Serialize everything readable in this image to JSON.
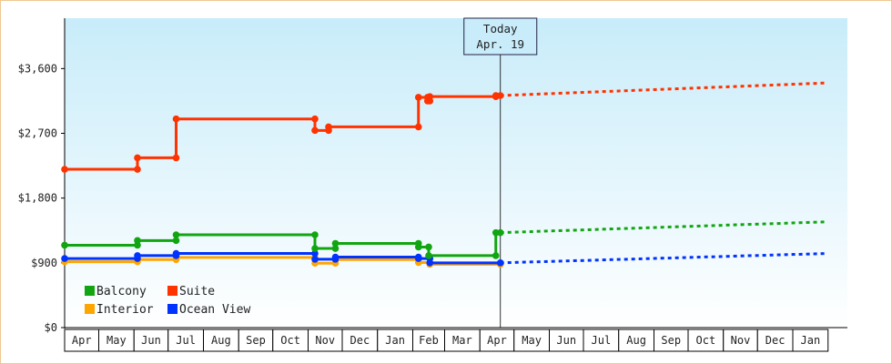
{
  "chart_data": {
    "type": "line",
    "title": "",
    "xlabel": "",
    "ylabel": "",
    "ylim": [
      0,
      4300
    ],
    "y_ticks": [
      0,
      900,
      1800,
      2700,
      3600
    ],
    "y_tick_labels": [
      "$0",
      "$900",
      "$1,800",
      "$2,700",
      "$3,600"
    ],
    "x_tick_labels": [
      "Apr",
      "May",
      "Jun",
      "Jul",
      "Aug",
      "Sep",
      "Oct",
      "Nov",
      "Dec",
      "Jan",
      "Feb",
      "Mar",
      "Apr",
      "May",
      "Jun",
      "Jul",
      "Aug",
      "Sep",
      "Oct",
      "Nov",
      "Dec",
      "Jan"
    ],
    "x_start": "2012-04-01",
    "today_marker": {
      "title": "Today",
      "date_label": "Apr. 19",
      "x": "2013-04-19"
    },
    "grid": false,
    "legend_position": "bottom-left",
    "series": [
      {
        "name": "Balcony",
        "color": "#11a611",
        "points": [
          [
            "2012-04-01",
            1145
          ],
          [
            "2012-06-04",
            1145
          ],
          [
            "2012-06-04",
            1210
          ],
          [
            "2012-07-08",
            1210
          ],
          [
            "2012-07-08",
            1290
          ],
          [
            "2012-11-07",
            1290
          ],
          [
            "2012-11-07",
            1100
          ],
          [
            "2012-11-25",
            1100
          ],
          [
            "2012-11-25",
            1170
          ],
          [
            "2013-02-06",
            1170
          ],
          [
            "2013-02-06",
            1120
          ],
          [
            "2013-02-15",
            1120
          ],
          [
            "2013-02-15",
            1000
          ],
          [
            "2013-04-15",
            1000
          ],
          [
            "2013-04-15",
            1320
          ],
          [
            "2013-04-19",
            1320
          ]
        ],
        "forecast": [
          [
            "2013-04-19",
            1320
          ],
          [
            "2014-01-31",
            1470
          ]
        ]
      },
      {
        "name": "Suite",
        "color": "#ff3300",
        "points": [
          [
            "2012-04-01",
            2200
          ],
          [
            "2012-06-04",
            2200
          ],
          [
            "2012-06-04",
            2360
          ],
          [
            "2012-07-08",
            2360
          ],
          [
            "2012-07-08",
            2900
          ],
          [
            "2012-11-07",
            2900
          ],
          [
            "2012-11-07",
            2740
          ],
          [
            "2012-11-19",
            2740
          ],
          [
            "2012-11-19",
            2790
          ],
          [
            "2013-02-06",
            2790
          ],
          [
            "2013-02-06",
            3200
          ],
          [
            "2013-02-14",
            3200
          ],
          [
            "2013-02-14",
            3150
          ],
          [
            "2013-02-16",
            3150
          ],
          [
            "2013-02-16",
            3210
          ],
          [
            "2013-04-15",
            3210
          ],
          [
            "2013-04-15",
            3225
          ],
          [
            "2013-04-19",
            3225
          ]
        ],
        "forecast": [
          [
            "2013-04-19",
            3225
          ],
          [
            "2014-01-31",
            3400
          ]
        ]
      },
      {
        "name": "Interior",
        "color": "#ffa500",
        "points": [
          [
            "2012-04-01",
            915
          ],
          [
            "2012-06-04",
            915
          ],
          [
            "2012-06-04",
            945
          ],
          [
            "2012-07-08",
            945
          ],
          [
            "2012-07-08",
            975
          ],
          [
            "2012-11-07",
            975
          ],
          [
            "2012-11-07",
            895
          ],
          [
            "2012-11-25",
            895
          ],
          [
            "2012-11-25",
            945
          ],
          [
            "2013-02-06",
            945
          ],
          [
            "2013-02-06",
            905
          ],
          [
            "2013-02-16",
            905
          ],
          [
            "2013-02-16",
            880
          ],
          [
            "2013-04-19",
            880
          ]
        ],
        "forecast": []
      },
      {
        "name": "Ocean View",
        "color": "#0033ff",
        "points": [
          [
            "2012-04-01",
            960
          ],
          [
            "2012-06-04",
            960
          ],
          [
            "2012-06-04",
            1000
          ],
          [
            "2012-07-08",
            1000
          ],
          [
            "2012-07-08",
            1030
          ],
          [
            "2012-11-07",
            1030
          ],
          [
            "2012-11-07",
            950
          ],
          [
            "2012-11-25",
            950
          ],
          [
            "2012-11-25",
            980
          ],
          [
            "2013-02-06",
            980
          ],
          [
            "2013-02-06",
            960
          ],
          [
            "2013-02-16",
            960
          ],
          [
            "2013-02-16",
            900
          ],
          [
            "2013-04-19",
            900
          ]
        ],
        "forecast": [
          [
            "2013-04-19",
            900
          ],
          [
            "2014-01-31",
            1030
          ]
        ]
      }
    ]
  }
}
